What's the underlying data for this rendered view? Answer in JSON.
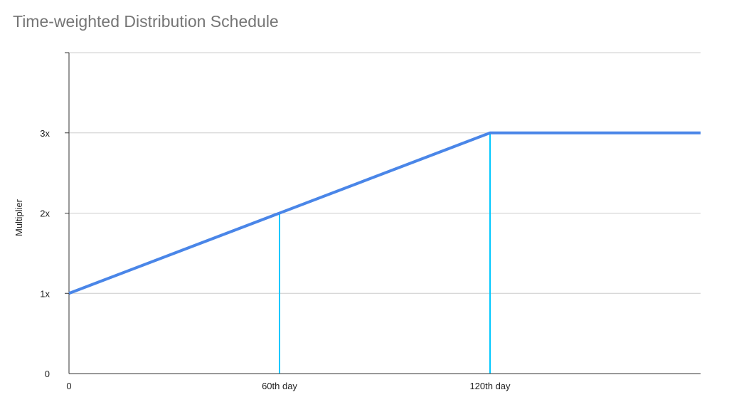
{
  "chart_data": {
    "type": "line",
    "title": "Time-weighted Distribution Schedule",
    "xlabel": "",
    "ylabel": "Multiplier",
    "xlim": [
      0,
      180
    ],
    "ylim": [
      0,
      4
    ],
    "x_ticks": [
      {
        "value": 0,
        "label": "0"
      },
      {
        "value": 60,
        "label": "60th day"
      },
      {
        "value": 120,
        "label": "120th day"
      }
    ],
    "y_ticks": [
      {
        "value": 0,
        "label": "0"
      },
      {
        "value": 1,
        "label": "1x"
      },
      {
        "value": 2,
        "label": "2x"
      },
      {
        "value": 3,
        "label": "3x"
      }
    ],
    "grid": true,
    "series": [
      {
        "points": [
          [
            0,
            1
          ],
          [
            60,
            2
          ],
          [
            120,
            3
          ],
          [
            180,
            3
          ]
        ],
        "color": "#4a86e8"
      }
    ],
    "markers": [
      {
        "x": 60,
        "y": 2,
        "color": "#00c8ff"
      },
      {
        "x": 120,
        "y": 3,
        "color": "#00c8ff"
      }
    ]
  }
}
